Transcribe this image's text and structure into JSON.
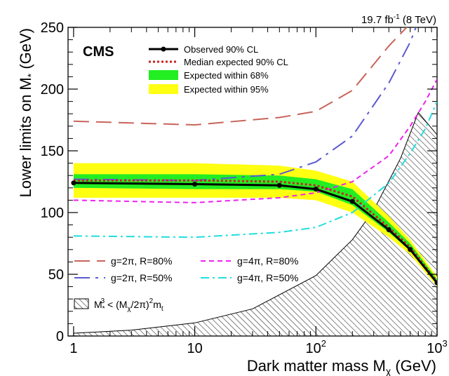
{
  "chart_data": {
    "type": "line",
    "title": "",
    "experiment_label": "CMS",
    "lumi_label": "19.7 fb",
    "lumi_sup": "-1",
    "lumi_energy": " (8 TeV)",
    "xlabel": "Dark matter mass M",
    "xlabel_sub": "χ",
    "xlabel_unit": " (GeV)",
    "ylabel": "Lower limits on M",
    "ylabel_sub": "*",
    "ylabel_unit": " (GeV)",
    "x_scale": "log",
    "xlim": [
      0.9,
      1000
    ],
    "ylim": [
      0,
      250
    ],
    "x_ticks": [
      {
        "value": 1,
        "base": "1",
        "sup": ""
      },
      {
        "value": 10,
        "base": "10",
        "sup": ""
      },
      {
        "value": 100,
        "base": "10",
        "sup": "2"
      },
      {
        "value": 1000,
        "base": "10",
        "sup": "3"
      }
    ],
    "y_ticks": [
      "0",
      "50",
      "100",
      "150",
      "200",
      "250"
    ],
    "legend": [
      {
        "label": "Observed 90% CL",
        "style": "observed"
      },
      {
        "label": "Median expected 90% CL",
        "style": "expected"
      },
      {
        "label": "Expected within 68%",
        "style": "band68"
      },
      {
        "label": "Expected within 95%",
        "style": "band95"
      }
    ],
    "colors": {
      "observed": "#000000",
      "expected": "#cc2222",
      "band68": "#22ee22",
      "band95": "#ffff11",
      "g2pi_r80": "#c8645a",
      "g2pi_r50": "#5a5ad2",
      "g4pi_r80": "#ee22ee",
      "g4pi_r50": "#22dddd",
      "excluded": "#444444"
    },
    "observed": {
      "x": [
        1,
        10,
        50,
        100,
        200,
        400,
        600,
        1000
      ],
      "y": [
        124,
        123,
        122,
        119,
        109,
        86,
        70,
        43
      ]
    },
    "expected": {
      "x": [
        1,
        10,
        50,
        100,
        200,
        400,
        600,
        1000
      ],
      "y": [
        126,
        126,
        125,
        122,
        113,
        88,
        72,
        44
      ]
    },
    "band68": {
      "x": [
        1,
        10,
        50,
        100,
        200,
        400,
        600,
        1000
      ],
      "low": [
        120,
        119,
        119,
        117,
        106,
        84,
        69,
        42
      ],
      "high": [
        131,
        131,
        130,
        127,
        119,
        92,
        75,
        46
      ]
    },
    "band95": {
      "x": [
        1,
        10,
        50,
        100,
        200,
        400,
        600,
        1000
      ],
      "low": [
        112,
        112,
        112,
        110,
        100,
        80,
        66,
        40
      ],
      "high": [
        140,
        140,
        138,
        134,
        125,
        97,
        78,
        48
      ]
    },
    "reference_series": [
      {
        "label": "g=2π, R=80%",
        "style": "g2pi_r80",
        "x": [
          1,
          10,
          50,
          100,
          200,
          400,
          600
        ],
        "y": [
          174,
          171,
          177,
          182,
          199,
          235,
          253
        ]
      },
      {
        "label": "g=2π, R=50%",
        "style": "g2pi_r50",
        "x": [
          1,
          10,
          50,
          100,
          200,
          400,
          600,
          700
        ],
        "y": [
          127,
          126,
          131,
          141,
          162,
          205,
          238,
          255
        ]
      },
      {
        "label": "g=4π, R=80%",
        "style": "g4pi_r80",
        "x": [
          1,
          10,
          50,
          100,
          200,
          400,
          600,
          800,
          1000
        ],
        "y": [
          110,
          108,
          112,
          116,
          125,
          146,
          170,
          190,
          208
        ]
      },
      {
        "label": "g=4π, R=50%",
        "style": "g4pi_r50",
        "x": [
          1,
          10,
          50,
          100,
          200,
          400,
          600,
          800,
          1000
        ],
        "y": [
          81,
          80,
          84,
          88,
          100,
          124,
          148,
          168,
          190
        ]
      }
    ],
    "excluded_region": {
      "formula": "M*^3 < (Mχ/2π)^2 mt",
      "x": [
        1,
        3,
        10,
        30,
        100,
        200,
        300,
        500,
        700,
        1000
      ],
      "y": [
        2.3,
        4.8,
        10.6,
        22,
        49,
        78,
        102,
        144,
        181,
        163
      ]
    },
    "excluded_legend": {
      "p1": "M",
      "p1_sub": "*",
      "p1_sup": "3",
      "p2": " < (M",
      "p2_sub": "χ",
      "p3": "/2π)",
      "p3_sup": "2",
      "p4": "m",
      "p4_sub": "t"
    }
  }
}
